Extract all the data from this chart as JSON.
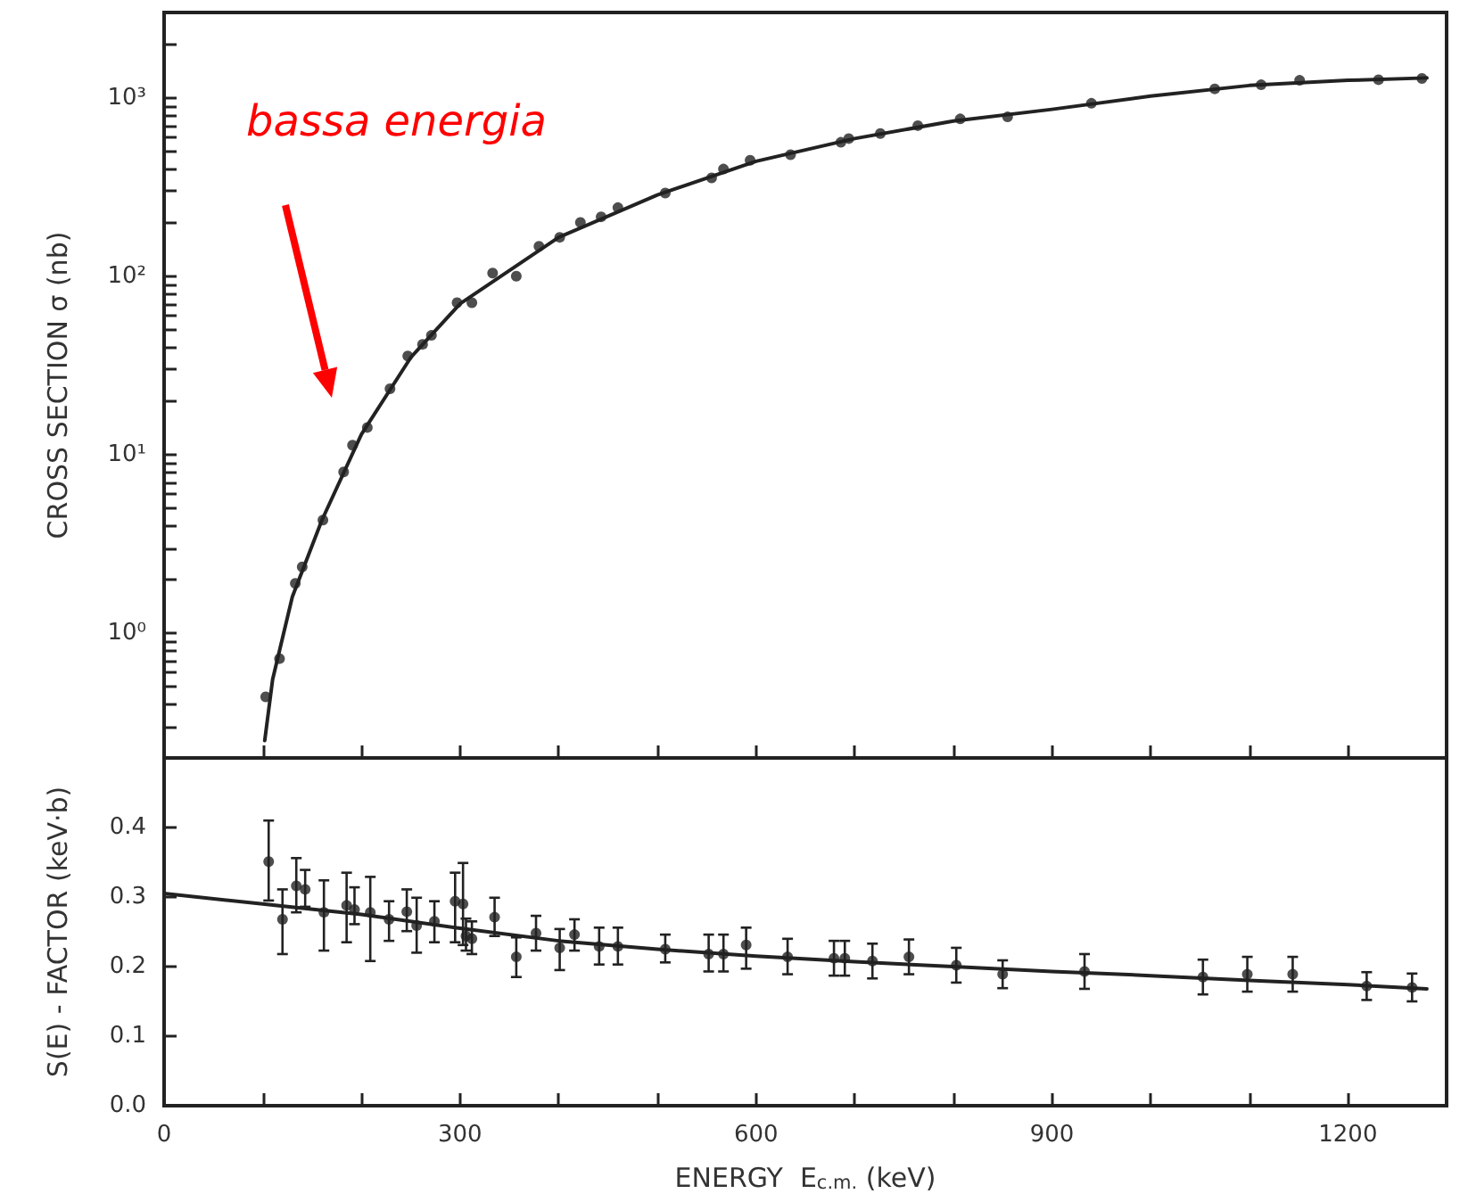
{
  "chart_data": [
    {
      "type": "scatter",
      "ylabel": "CROSS SECTION σ (nb)",
      "log": "y",
      "grid": false,
      "marker": "circle",
      "tick_labels": "y",
      "xlim": [
        0,
        1300
      ],
      "xticks": [
        {
          "value": 0,
          "label": null
        },
        {
          "value": 100,
          "label": null
        },
        {
          "value": 200,
          "label": null
        },
        {
          "value": 300,
          "label": null
        },
        {
          "value": 400,
          "label": null
        },
        {
          "value": 500,
          "label": null
        },
        {
          "value": 600,
          "label": null
        },
        {
          "value": 700,
          "label": null
        },
        {
          "value": 800,
          "label": null
        },
        {
          "value": 900,
          "label": null
        },
        {
          "value": 1000,
          "label": null
        },
        {
          "value": 1100,
          "label": null
        },
        {
          "value": 1200,
          "label": null
        }
      ],
      "ylim": [
        0.2,
        3000
      ],
      "yticks": [
        {
          "value": 0.2,
          "label": null
        },
        {
          "value": 0.3,
          "label": null
        },
        {
          "value": 0.4,
          "label": null
        },
        {
          "value": 0.5,
          "label": null
        },
        {
          "value": 0.6,
          "label": null
        },
        {
          "value": 0.7,
          "label": null
        },
        {
          "value": 0.8,
          "label": null
        },
        {
          "value": 0.9,
          "label": null
        },
        {
          "value": 1,
          "label": "10⁰"
        },
        {
          "value": 2,
          "label": null
        },
        {
          "value": 3,
          "label": null
        },
        {
          "value": 4,
          "label": null
        },
        {
          "value": 5,
          "label": null
        },
        {
          "value": 6,
          "label": null
        },
        {
          "value": 7,
          "label": null
        },
        {
          "value": 8,
          "label": null
        },
        {
          "value": 9,
          "label": null
        },
        {
          "value": 10,
          "label": "10¹"
        },
        {
          "value": 20,
          "label": null
        },
        {
          "value": 30,
          "label": null
        },
        {
          "value": 40,
          "label": null
        },
        {
          "value": 50,
          "label": null
        },
        {
          "value": 60,
          "label": null
        },
        {
          "value": 70,
          "label": null
        },
        {
          "value": 80,
          "label": null
        },
        {
          "value": 90,
          "label": null
        },
        {
          "value": 100,
          "label": "10²"
        },
        {
          "value": 200,
          "label": null
        },
        {
          "value": 300,
          "label": null
        },
        {
          "value": 400,
          "label": null
        },
        {
          "value": 500,
          "label": null
        },
        {
          "value": 600,
          "label": null
        },
        {
          "value": 700,
          "label": null
        },
        {
          "value": 800,
          "label": null
        },
        {
          "value": 900,
          "label": null
        },
        {
          "value": 1000,
          "label": "10³"
        },
        {
          "value": 2000,
          "label": null
        },
        {
          "value": 3000,
          "label": null
        }
      ],
      "annotations": [
        "bassa energia"
      ],
      "series": [
        {
          "type": "scatter",
          "color": "#222222",
          "x": [
            103,
            117,
            133,
            140,
            161,
            182,
            191,
            206,
            229,
            247,
            262,
            271,
            297,
            312,
            333,
            357,
            380,
            401,
            422,
            443,
            460,
            508,
            555,
            567,
            594,
            635,
            686,
            694,
            726,
            764,
            807,
            855,
            940,
            1065,
            1112,
            1151,
            1231,
            1275
          ],
          "values": [
            0.44,
            0.72,
            1.9,
            2.35,
            4.3,
            8.0,
            11.3,
            14.2,
            23.4,
            35.7,
            41.5,
            46.6,
            71,
            71,
            104,
            100,
            147,
            165,
            200,
            215,
            242,
            292,
            355,
            398,
            446,
            479,
            562,
            590,
            630,
            697,
            760,
            780,
            930,
            1120,
            1180,
            1250,
            1260,
            1280
          ]
        },
        {
          "type": "line",
          "color": "#222222",
          "marker": "none",
          "x": [
            102,
            110,
            130,
            160,
            200,
            250,
            300,
            400,
            500,
            600,
            700,
            800,
            900,
            1000,
            1100,
            1200,
            1280
          ],
          "values": [
            0.25,
            0.55,
            1.6,
            4.3,
            13,
            35,
            70,
            165,
            285,
            440,
            590,
            740,
            860,
            1020,
            1170,
            1250,
            1290
          ]
        }
      ]
    },
    {
      "type": "scatter",
      "xlabel": "ENERGY  E$_{c.m.}$ (keV)",
      "ylabel": "S(E) - FACTOR (keV·b)",
      "grid": false,
      "marker": "circle",
      "xlim": [
        0,
        1300
      ],
      "xticks": [
        0,
        {
          "value": 100,
          "label": null
        },
        {
          "value": 200,
          "label": null
        },
        300,
        {
          "value": 400,
          "label": null
        },
        {
          "value": 500,
          "label": null
        },
        600,
        {
          "value": 700,
          "label": null
        },
        {
          "value": 800,
          "label": null
        },
        900,
        {
          "value": 1000,
          "label": null
        },
        {
          "value": 1100,
          "label": null
        },
        1200
      ],
      "ylim": [
        0,
        0.5
      ],
      "yticks": [
        {
          "value": 0,
          "label": "0.0"
        },
        {
          "value": 0.1,
          "label": "0.1"
        },
        {
          "value": 0.2,
          "label": "0.2"
        },
        {
          "value": 0.3,
          "label": "0.3"
        },
        {
          "value": 0.4,
          "label": "0.4"
        }
      ],
      "series": [
        {
          "type": "scatter",
          "color": "#222222",
          "x": [
            106,
            120,
            134,
            143,
            162,
            185,
            193,
            209,
            228,
            246,
            256,
            274,
            295,
            303,
            306,
            312,
            335,
            357,
            377,
            401,
            416,
            441,
            460,
            508,
            552,
            567,
            590,
            632,
            679,
            690,
            718,
            755,
            803,
            850,
            933,
            1053,
            1098,
            1144,
            1219,
            1265
          ],
          "values": [
            0.351,
            0.268,
            0.316,
            0.311,
            0.278,
            0.288,
            0.282,
            0.278,
            0.268,
            0.279,
            0.259,
            0.265,
            0.294,
            0.29,
            0.244,
            0.24,
            0.271,
            0.214,
            0.248,
            0.227,
            0.246,
            0.229,
            0.229,
            0.225,
            0.218,
            0.218,
            0.231,
            0.214,
            0.212,
            0.212,
            0.208,
            0.214,
            0.202,
            0.189,
            0.193,
            0.185,
            0.189,
            0.189,
            0.172,
            0.17
          ],
          "errors": [
            [
              0.295,
              0.41
            ],
            [
              0.218,
              0.311
            ],
            [
              0.278,
              0.356
            ],
            [
              0.286,
              0.339
            ],
            [
              0.223,
              0.324
            ],
            [
              0.235,
              0.335
            ],
            [
              0.261,
              0.314
            ],
            [
              0.208,
              0.329
            ],
            [
              0.237,
              0.294
            ],
            [
              0.251,
              0.311
            ],
            [
              0.22,
              0.299
            ],
            [
              0.235,
              0.294
            ],
            [
              0.235,
              0.335
            ],
            [
              0.231,
              0.349
            ],
            [
              0.223,
              0.269
            ],
            [
              0.218,
              0.265
            ],
            [
              0.244,
              0.299
            ],
            [
              0.185,
              0.242
            ],
            [
              0.223,
              0.273
            ],
            [
              0.195,
              0.254
            ],
            [
              0.223,
              0.268
            ],
            [
              0.203,
              0.256
            ],
            [
              0.203,
              0.256
            ],
            [
              0.206,
              0.246
            ],
            [
              0.193,
              0.246
            ],
            [
              0.193,
              0.246
            ],
            [
              0.197,
              0.256
            ],
            [
              0.189,
              0.24
            ],
            0.025,
            0.025,
            0.025,
            0.025,
            0.025,
            0.02,
            0.025,
            0.025,
            0.025,
            0.025,
            0.02,
            0.02
          ]
        },
        {
          "type": "line",
          "color": "#222222",
          "marker": "none",
          "x": [
            0,
            100,
            200,
            300,
            400,
            500,
            600,
            700,
            800,
            900,
            1000,
            1100,
            1200,
            1280
          ],
          "values": [
            0.305,
            0.29,
            0.275,
            0.255,
            0.237,
            0.225,
            0.215,
            0.207,
            0.2,
            0.193,
            0.187,
            0.18,
            0.174,
            0.168
          ]
        }
      ]
    }
  ]
}
